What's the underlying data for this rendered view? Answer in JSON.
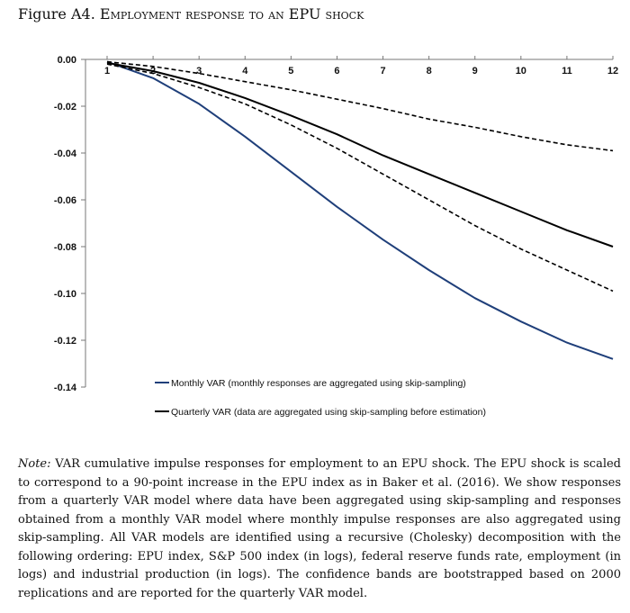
{
  "figure": {
    "label": "Figure A4.",
    "title": "Employment response to an EPU shock"
  },
  "note": {
    "label": "Note:",
    "text": "VAR cumulative impulse responses for employment to an EPU shock. The EPU shock is scaled to correspond to a 90-point increase in the EPU index as in Baker et al. (2016). We show responses from a quarterly VAR model where data have been aggregated using skip-sampling and responses obtained from a monthly VAR model where monthly impulse responses are also aggregated using skip-sampling. All VAR models are identified using a recursive (Cholesky) decomposition with the following ordering: EPU index, S&P 500 index (in logs), federal reserve funds rate, employment (in logs) and industrial production (in logs). The confidence bands are bootstrapped based on 2000 replications and are reported for the quarterly VAR model."
  },
  "chart_data": {
    "type": "line",
    "title": "",
    "xlabel": "",
    "ylabel": "",
    "x": [
      1,
      2,
      3,
      4,
      5,
      6,
      7,
      8,
      9,
      10,
      11,
      12
    ],
    "xlim": [
      1,
      12
    ],
    "ylim": [
      -0.14,
      0.0
    ],
    "yticks": [
      0.0,
      -0.02,
      -0.04,
      -0.06,
      -0.08,
      -0.1,
      -0.12,
      -0.14
    ],
    "ytick_labels": [
      "0.00",
      "-0.02",
      "-0.04",
      "-0.06",
      "-0.08",
      "-0.10",
      "-0.12",
      "-0.14"
    ],
    "xtick_labels": [
      "1",
      "2",
      "3",
      "4",
      "5",
      "6",
      "7",
      "8",
      "9",
      "10",
      "11",
      "12"
    ],
    "grid": false,
    "series": [
      {
        "name": "Monthly VAR (monthly responses are aggregated using skip-sampling)",
        "color": "#1f3f7a",
        "style": "solid",
        "in_legend": true,
        "values": [
          -0.001,
          -0.008,
          -0.019,
          -0.033,
          -0.048,
          -0.063,
          -0.077,
          -0.09,
          -0.102,
          -0.112,
          -0.121,
          -0.128
        ]
      },
      {
        "name": "Quarterly VAR (data are aggregated using skip-sampling before estimation)",
        "color": "#000000",
        "style": "solid",
        "in_legend": true,
        "values": [
          -0.0015,
          -0.005,
          -0.01,
          -0.0165,
          -0.024,
          -0.032,
          -0.041,
          -0.049,
          -0.057,
          -0.065,
          -0.073,
          -0.08
        ]
      },
      {
        "name": "Upper confidence band",
        "color": "#000000",
        "style": "dashed",
        "in_legend": false,
        "values": [
          -0.001,
          -0.003,
          -0.006,
          -0.0095,
          -0.013,
          -0.017,
          -0.021,
          -0.0255,
          -0.029,
          -0.033,
          -0.0365,
          -0.039
        ]
      },
      {
        "name": "Lower confidence band",
        "color": "#000000",
        "style": "dashed",
        "in_legend": false,
        "values": [
          -0.002,
          -0.006,
          -0.012,
          -0.019,
          -0.028,
          -0.038,
          -0.049,
          -0.06,
          -0.071,
          -0.081,
          -0.09,
          -0.099
        ]
      }
    ]
  }
}
